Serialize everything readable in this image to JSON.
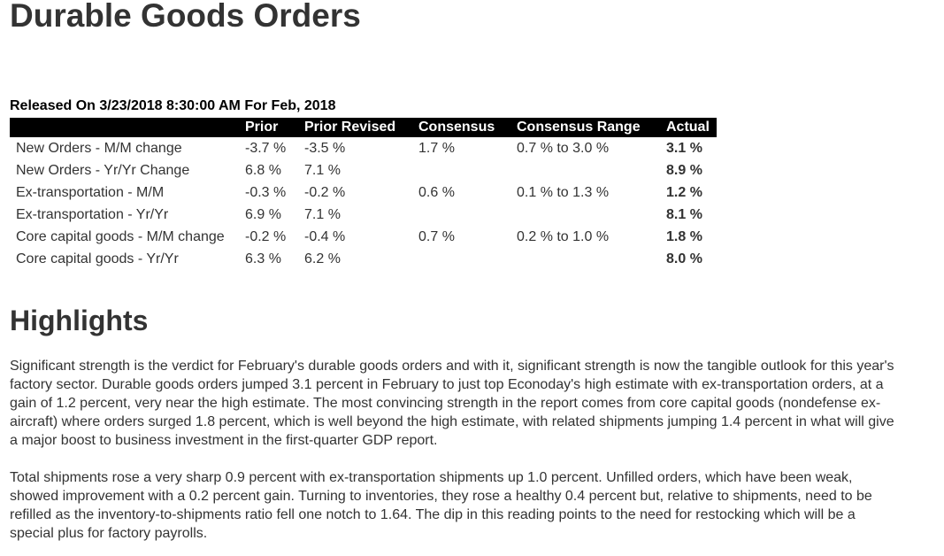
{
  "page": {
    "title": "Durable Goods Orders",
    "release_line": "Released On 3/23/2018 8:30:00 AM For Feb, 2018"
  },
  "table": {
    "headers": [
      "",
      "Prior",
      "Prior Revised",
      "Consensus",
      "Consensus Range",
      "Actual"
    ],
    "rows": [
      {
        "label": "New Orders - M/M change",
        "prior": "-3.7 %",
        "revised": "-3.5 %",
        "consensus": "1.7 %",
        "range": "0.7 % to 3.0 %",
        "actual": "3.1 %"
      },
      {
        "label": "New Orders - Yr/Yr Change",
        "prior": "6.8 %",
        "revised": "7.1 %",
        "consensus": "",
        "range": "",
        "actual": "8.9 %"
      },
      {
        "label": "Ex-transportation - M/M",
        "prior": "-0.3 %",
        "revised": "-0.2 %",
        "consensus": "0.6 %",
        "range": "0.1 % to 1.3 %",
        "actual": "1.2 %"
      },
      {
        "label": "Ex-transportation - Yr/Yr",
        "prior": "6.9 %",
        "revised": "7.1 %",
        "consensus": "",
        "range": "",
        "actual": "8.1 %"
      },
      {
        "label": "Core capital goods - M/M change",
        "prior": "-0.2 %",
        "revised": "-0.4 %",
        "consensus": "0.7 %",
        "range": "0.2 % to 1.0 %",
        "actual": "1.8 %"
      },
      {
        "label": "Core capital goods - Yr/Yr",
        "prior": "6.3 %",
        "revised": "6.2 %",
        "consensus": "",
        "range": "",
        "actual": "8.0 %"
      }
    ]
  },
  "highlights": {
    "heading": "Highlights",
    "paragraphs": [
      "Significant strength is the verdict for February's durable goods orders and with it, significant strength is now the tangible outlook for this year's factory sector. Durable goods orders jumped 3.1 percent in February to just top Econoday's high estimate with ex-transportation orders, at a gain of 1.2 percent, very near the high estimate. The most convincing strength in the report comes from core capital goods (nondefense ex-aircraft) where orders surged 1.8 percent, which is well beyond the high estimate, with related shipments jumping 1.4 percent in what will give a major boost to business investment in the first-quarter GDP report.",
      "Total shipments rose a very sharp 0.9 percent with ex-transportation shipments up 1.0 percent. Unfilled orders, which have been weak, showed improvement with a 0.2 percent gain. Turning to inventories, they rose a healthy 0.4 percent but, relative to shipments, need to be refilled as the inventory-to-shipments ratio fell one notch to 1.64. The dip in this reading points to the need for restocking which will be a special plus for factory payrolls."
    ]
  }
}
